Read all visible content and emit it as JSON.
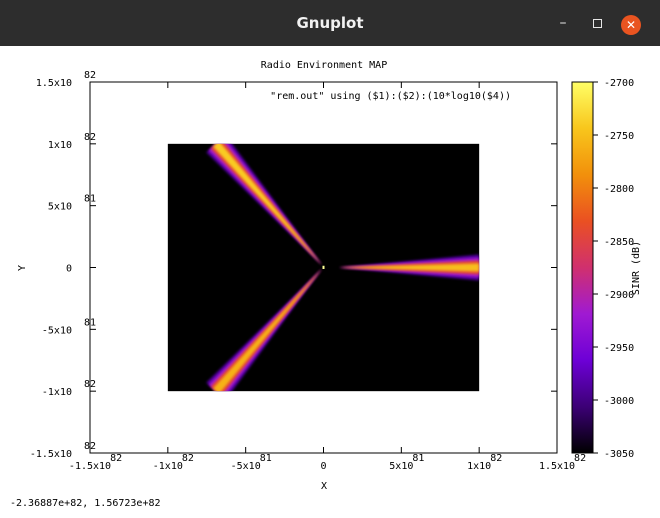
{
  "window": {
    "title": "Gnuplot",
    "minimize_glyph": "–",
    "close_glyph": "✕"
  },
  "chart_data": {
    "type": "heatmap",
    "title": "Radio Environment MAP",
    "key_label": "\"rem.out\" using ($1):($2):(10*log10($4))",
    "xlabel": "X",
    "ylabel": "Y",
    "cblabel": "SINR (dB)",
    "xlim": [
      -1.5e+82,
      1.5e+82
    ],
    "ylim": [
      -1.5e+82,
      1.5e+82
    ],
    "cbrange": [
      -3050,
      -2700
    ],
    "x_ticks": [
      {
        "value": -1.5e+82,
        "mant": "-1.5x10",
        "exp": "82"
      },
      {
        "value": -1e+82,
        "mant": "-1x10",
        "exp": "82"
      },
      {
        "value": -5e+81,
        "mant": "-5x10",
        "exp": "81"
      },
      {
        "value": 0,
        "mant": "0",
        "exp": ""
      },
      {
        "value": 5e+81,
        "mant": "5x10",
        "exp": "81"
      },
      {
        "value": 1e+82,
        "mant": "1x10",
        "exp": "82"
      },
      {
        "value": 1.5e+82,
        "mant": "1.5x10",
        "exp": "82"
      }
    ],
    "y_ticks": [
      {
        "value": 1.5e+82,
        "mant": "1.5x10",
        "exp": "82"
      },
      {
        "value": 1e+82,
        "mant": "1x10",
        "exp": "82"
      },
      {
        "value": 5e+81,
        "mant": "5x10",
        "exp": "81"
      },
      {
        "value": 0,
        "mant": "0",
        "exp": ""
      },
      {
        "value": -5e+81,
        "mant": "-5x10",
        "exp": "81"
      },
      {
        "value": -1e+82,
        "mant": "-1x10",
        "exp": "82"
      },
      {
        "value": -1.5e+82,
        "mant": "-1.5x10",
        "exp": "82"
      }
    ],
    "cb_ticks": [
      -2700,
      -2750,
      -2800,
      -2850,
      -2900,
      -2950,
      -3000,
      -3050
    ],
    "map_extent": {
      "x": [
        -1e+82,
        1e+82
      ],
      "y": [
        -1e+82,
        1e+82
      ]
    },
    "beams": [
      {
        "name": "upper-left beam",
        "origin": [
          -1e+80,
          2e+80
        ],
        "end": [
          -6.9e+81,
          1e+82
        ],
        "peak_sinr": -2740
      },
      {
        "name": "lower-left beam",
        "origin": [
          -1e+80,
          -1e+80
        ],
        "end": [
          -6.9e+81,
          -1e+82
        ],
        "peak_sinr": -2760
      },
      {
        "name": "right beam",
        "origin": [
          1e+81,
          0
        ],
        "end": [
          1e+82,
          0
        ],
        "peak_sinr": -2750
      }
    ],
    "colors": {
      "background": "#000000",
      "palette": [
        "#000000",
        "#3c0076",
        "#6d00d6",
        "#a01ad2",
        "#d0306e",
        "#ea5022",
        "#f2900b",
        "#f8c61c",
        "#ffff66"
      ]
    }
  },
  "status_bar": {
    "coordinates": "-2.36887e+82,  1.56723e+82"
  }
}
